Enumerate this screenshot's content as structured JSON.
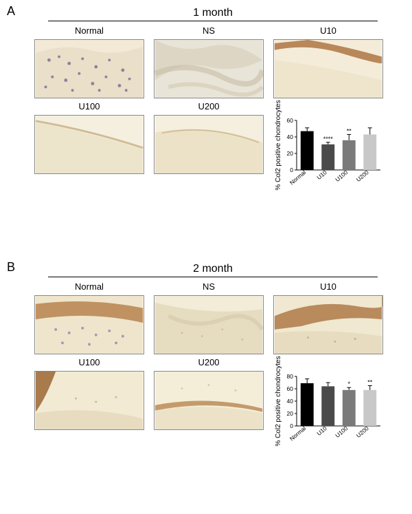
{
  "panelA": {
    "letter": "A",
    "timepoint": "1 month",
    "images": {
      "row1": [
        "Normal",
        "NS",
        "U10"
      ],
      "row2": [
        "U100",
        "U200"
      ]
    },
    "chart": {
      "type": "bar",
      "ylabel": "% Col2 positive chondrocytes",
      "categories": [
        "Normal",
        "U10",
        "U100",
        "U200"
      ],
      "values": [
        47,
        31,
        36,
        43
      ],
      "errors": [
        4,
        2.5,
        7,
        8
      ],
      "sig": [
        "",
        "****",
        "**",
        ""
      ],
      "bar_colors": [
        "#000000",
        "#4a4a4a",
        "#7a7a7a",
        "#c8c8c8"
      ],
      "ylim": [
        0,
        60
      ],
      "ytick_step": 20,
      "label_fontsize": 10,
      "tick_fontsize": 8.5,
      "bar_width": 0.62,
      "background_color": "#ffffff",
      "axis_color": "#000000"
    }
  },
  "panelB": {
    "letter": "B",
    "timepoint": "2 month",
    "images": {
      "row1": [
        "Normal",
        "NS",
        "U10"
      ],
      "row2": [
        "U100",
        "U200"
      ]
    },
    "chart": {
      "type": "bar",
      "ylabel": "% Col2 positive chondrocytes",
      "categories": [
        "Normal",
        "U10",
        "U100",
        "U200"
      ],
      "values": [
        69,
        64,
        58,
        58
      ],
      "errors": [
        7,
        6,
        4,
        7
      ],
      "sig": [
        "",
        "",
        "*",
        "**"
      ],
      "bar_colors": [
        "#000000",
        "#4a4a4a",
        "#7a7a7a",
        "#c8c8c8"
      ],
      "ylim": [
        0,
        80
      ],
      "ytick_step": 20,
      "label_fontsize": 10,
      "tick_fontsize": 8.5,
      "bar_width": 0.62,
      "background_color": "#ffffff",
      "axis_color": "#000000"
    }
  },
  "micro_colors": {
    "bg_light": "#f5efe4",
    "bg_mid": "#e8dcc8",
    "brown": "#c49a6c",
    "brown_dark": "#9c7347",
    "purple": "#8a7aa8",
    "gray": "#cfcfcf"
  }
}
